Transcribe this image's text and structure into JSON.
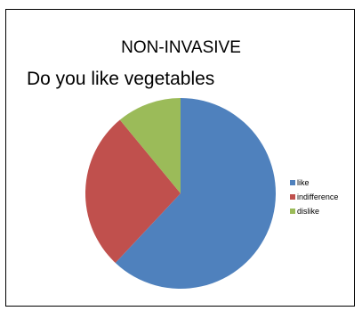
{
  "chart_data": {
    "type": "pie",
    "title": "NON-INVASIVE",
    "subtitle": "Do you like vegetables",
    "legend_position": "right",
    "slices": [
      {
        "label": "like",
        "value": 62,
        "color": "#4F81BD"
      },
      {
        "label": "indifference",
        "value": 27,
        "color": "#C0504D"
      },
      {
        "label": "dislike",
        "value": 11,
        "color": "#9BBB59"
      }
    ]
  }
}
